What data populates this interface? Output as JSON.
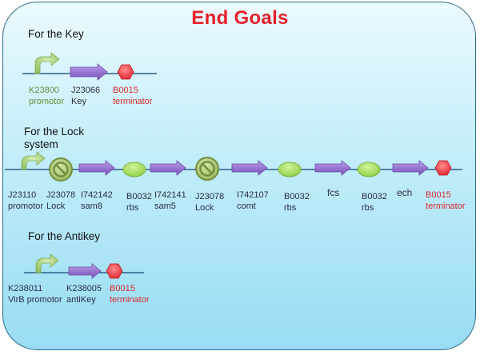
{
  "title": "End Goals",
  "sections": {
    "key": {
      "label": "For the Key",
      "parts": [
        {
          "name": "K23800",
          "role": "promotor"
        },
        {
          "name": "J23066",
          "role": "Key"
        },
        {
          "name": "B0015",
          "role": "terminator"
        }
      ]
    },
    "lock": {
      "label_line1": "For the Lock",
      "label_line2": "system",
      "parts": [
        {
          "name": "J23110",
          "role": "promotor"
        },
        {
          "name": "J23078",
          "role": "Lock"
        },
        {
          "name": "I742142",
          "role": "sam8"
        },
        {
          "name": "B0032",
          "role": "rbs"
        },
        {
          "name": "I742141",
          "role": "sam5"
        },
        {
          "name": "J23078",
          "role": "Lock"
        },
        {
          "name": "I742107",
          "role": "comt"
        },
        {
          "name": "B0032",
          "role": "rbs"
        },
        {
          "name": "fcs",
          "role": ""
        },
        {
          "name": "B0032",
          "role": "rbs"
        },
        {
          "name": "ech",
          "role": ""
        },
        {
          "name": "B0015",
          "role": "terminator"
        }
      ]
    },
    "antikey": {
      "label": "For the Antikey",
      "parts": [
        {
          "name": "K238011",
          "role": "VirB promotor"
        },
        {
          "name": "K238005",
          "role": "antiKey"
        },
        {
          "name": "B0015",
          "role": "terminator"
        }
      ]
    }
  },
  "colors": {
    "title": "#e8202a",
    "promoter": "#9ec76a",
    "coding_sequence": "#9a78d2",
    "rbs": "#a6e05c",
    "terminator": "#f0424a",
    "lock_symbol": "#a6c26a",
    "backbone": "#2f5f8a"
  }
}
